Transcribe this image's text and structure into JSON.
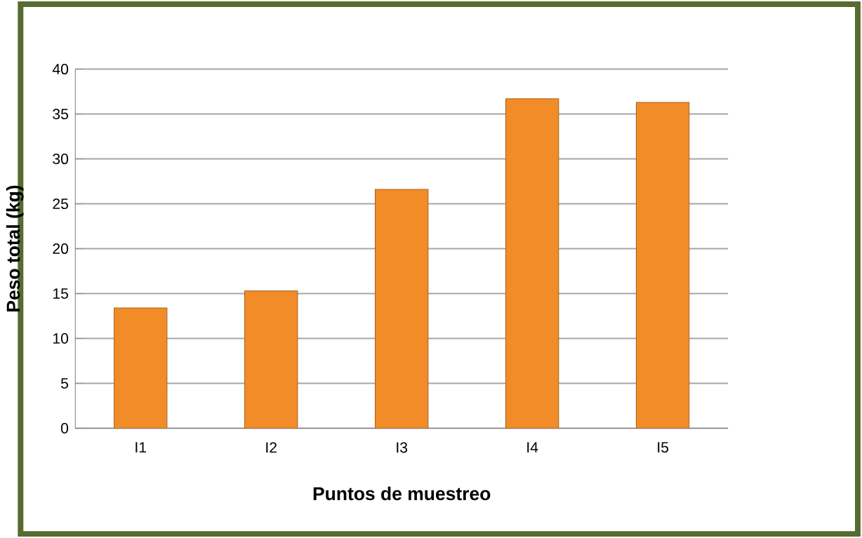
{
  "chart_data": {
    "type": "bar",
    "xlabel": "Puntos de muestreo",
    "ylabel": "Peso total  (kg)",
    "categories": [
      "I1",
      "I2",
      "I3",
      "I4",
      "I5"
    ],
    "values": [
      13.4,
      15.3,
      26.6,
      36.7,
      36.3
    ],
    "color": "#f28c28",
    "ylim": [
      0,
      40
    ],
    "yticks": [
      0,
      5,
      10,
      15,
      20,
      25,
      30,
      35,
      40
    ],
    "grid": "y"
  }
}
